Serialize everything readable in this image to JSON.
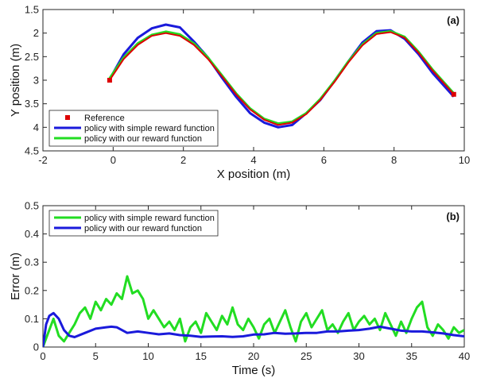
{
  "chart_data": [
    {
      "type": "line",
      "panel_label": "(a)",
      "xlabel": "X position (m)",
      "ylabel": "Y position (m)",
      "xlim": [
        -2,
        10
      ],
      "ylim": [
        1.5,
        4.5
      ],
      "y_reversed": true,
      "xticks": [
        -2,
        0,
        2,
        4,
        6,
        8,
        10
      ],
      "yticks": [
        1.5,
        2,
        2.5,
        3,
        3.5,
        4,
        4.5
      ],
      "ytick_labels": [
        "1.5",
        "2",
        "2.5",
        "3",
        "3.5",
        "4",
        "4.5"
      ],
      "legend_position": "bottom-left",
      "series": [
        {
          "name": "Reference",
          "color": "#dd0000",
          "marker": "square",
          "x": [
            -0.1,
            0.3,
            0.7,
            1.1,
            1.5,
            1.9,
            2.3,
            2.7,
            3.1,
            3.5,
            3.9,
            4.3,
            4.7,
            5.1,
            5.5,
            5.9,
            6.3,
            6.7,
            7.1,
            7.5,
            7.9,
            8.3,
            8.7,
            9.1,
            9.7
          ],
          "y": [
            3.0,
            2.55,
            2.25,
            2.06,
            2.0,
            2.06,
            2.25,
            2.55,
            2.92,
            3.3,
            3.62,
            3.84,
            3.95,
            3.9,
            3.72,
            3.42,
            3.04,
            2.62,
            2.26,
            2.02,
            1.98,
            2.1,
            2.42,
            2.8,
            3.3
          ]
        },
        {
          "name": "policy with simple reward function",
          "color": "#1a1adb",
          "x": [
            -0.1,
            0.3,
            0.7,
            1.1,
            1.5,
            1.9,
            2.3,
            2.7,
            3.1,
            3.5,
            3.9,
            4.3,
            4.7,
            5.1,
            5.5,
            5.9,
            6.3,
            6.7,
            7.1,
            7.5,
            7.9,
            8.3,
            8.7,
            9.1,
            9.7
          ],
          "y": [
            2.98,
            2.45,
            2.1,
            1.9,
            1.82,
            1.88,
            2.18,
            2.52,
            2.95,
            3.35,
            3.7,
            3.9,
            4.0,
            3.95,
            3.7,
            3.42,
            3.02,
            2.6,
            2.2,
            1.96,
            1.94,
            2.12,
            2.45,
            2.85,
            3.35
          ]
        },
        {
          "name": "policy with our reward function",
          "color": "#22dd22",
          "x": [
            -0.1,
            0.3,
            0.7,
            1.1,
            1.5,
            1.9,
            2.3,
            2.7,
            3.1,
            3.5,
            3.9,
            4.3,
            4.7,
            5.1,
            5.5,
            5.9,
            6.3,
            6.7,
            7.1,
            7.5,
            7.9,
            8.3,
            8.7,
            9.1,
            9.7
          ],
          "y": [
            2.96,
            2.52,
            2.22,
            2.04,
            1.97,
            2.03,
            2.22,
            2.52,
            2.9,
            3.28,
            3.6,
            3.82,
            3.92,
            3.88,
            3.7,
            3.4,
            3.02,
            2.6,
            2.24,
            2.0,
            1.96,
            2.08,
            2.4,
            2.78,
            3.28
          ]
        }
      ]
    },
    {
      "type": "line",
      "panel_label": "(b)",
      "xlabel": "Time (s)",
      "ylabel": "Error (m)",
      "xlim": [
        0,
        40
      ],
      "ylim": [
        0,
        0.5
      ],
      "xticks": [
        0,
        5,
        10,
        15,
        20,
        25,
        30,
        35,
        40
      ],
      "yticks": [
        0,
        0.1,
        0.2,
        0.3,
        0.4,
        0.5
      ],
      "ytick_labels": [
        "0",
        "0.1",
        "0.2",
        "0.3",
        "0.4",
        "0.5"
      ],
      "legend_position": "top-left",
      "series": [
        {
          "name": "policy with simple reward function",
          "color": "#22dd22",
          "x": [
            0,
            0.5,
            1,
            1.5,
            2,
            2.5,
            3,
            3.5,
            4,
            4.5,
            5,
            5.5,
            6,
            6.5,
            7,
            7.5,
            8,
            8.5,
            9,
            9.5,
            10,
            10.5,
            11,
            11.5,
            12,
            12.5,
            13,
            13.5,
            14,
            14.5,
            15,
            15.5,
            16,
            16.5,
            17,
            17.5,
            18,
            18.5,
            19,
            19.5,
            20,
            20.5,
            21,
            21.5,
            22,
            22.5,
            23,
            23.5,
            24,
            24.5,
            25,
            25.5,
            26,
            26.5,
            27,
            27.5,
            28,
            28.5,
            29,
            29.5,
            30,
            30.5,
            31,
            31.5,
            32,
            32.5,
            33,
            33.5,
            34,
            34.5,
            35,
            35.5,
            36,
            36.5,
            37,
            37.5,
            38,
            38.5,
            39,
            39.5,
            40
          ],
          "y": [
            0.0,
            0.05,
            0.1,
            0.04,
            0.02,
            0.05,
            0.08,
            0.12,
            0.14,
            0.1,
            0.16,
            0.13,
            0.17,
            0.15,
            0.19,
            0.17,
            0.25,
            0.19,
            0.2,
            0.17,
            0.1,
            0.13,
            0.1,
            0.07,
            0.09,
            0.06,
            0.1,
            0.02,
            0.07,
            0.09,
            0.05,
            0.12,
            0.09,
            0.06,
            0.11,
            0.08,
            0.14,
            0.08,
            0.06,
            0.1,
            0.07,
            0.03,
            0.08,
            0.1,
            0.05,
            0.09,
            0.13,
            0.07,
            0.02,
            0.09,
            0.12,
            0.07,
            0.1,
            0.13,
            0.06,
            0.08,
            0.05,
            0.09,
            0.12,
            0.06,
            0.09,
            0.11,
            0.08,
            0.1,
            0.06,
            0.12,
            0.08,
            0.04,
            0.09,
            0.05,
            0.1,
            0.14,
            0.16,
            0.07,
            0.04,
            0.08,
            0.06,
            0.03,
            0.07,
            0.05,
            0.06
          ]
        },
        {
          "name": "policy with our reward function",
          "color": "#1a1adb",
          "x": [
            0,
            0.3,
            0.6,
            1,
            1.5,
            2,
            2.5,
            3,
            4,
            5,
            6,
            6.5,
            7,
            8,
            9,
            10,
            11,
            12,
            13,
            14,
            15,
            16,
            17,
            18,
            19,
            20,
            21,
            22,
            23,
            24,
            25,
            26,
            27,
            28,
            29,
            30,
            31,
            32,
            33,
            34,
            35,
            36,
            37,
            38,
            39,
            40
          ],
          "y": [
            0.0,
            0.08,
            0.11,
            0.12,
            0.1,
            0.06,
            0.04,
            0.035,
            0.05,
            0.065,
            0.07,
            0.072,
            0.07,
            0.05,
            0.055,
            0.05,
            0.045,
            0.048,
            0.042,
            0.04,
            0.036,
            0.037,
            0.038,
            0.036,
            0.038,
            0.044,
            0.045,
            0.05,
            0.047,
            0.048,
            0.05,
            0.05,
            0.055,
            0.055,
            0.058,
            0.06,
            0.065,
            0.072,
            0.065,
            0.058,
            0.055,
            0.055,
            0.052,
            0.048,
            0.042,
            0.038
          ]
        }
      ]
    }
  ]
}
